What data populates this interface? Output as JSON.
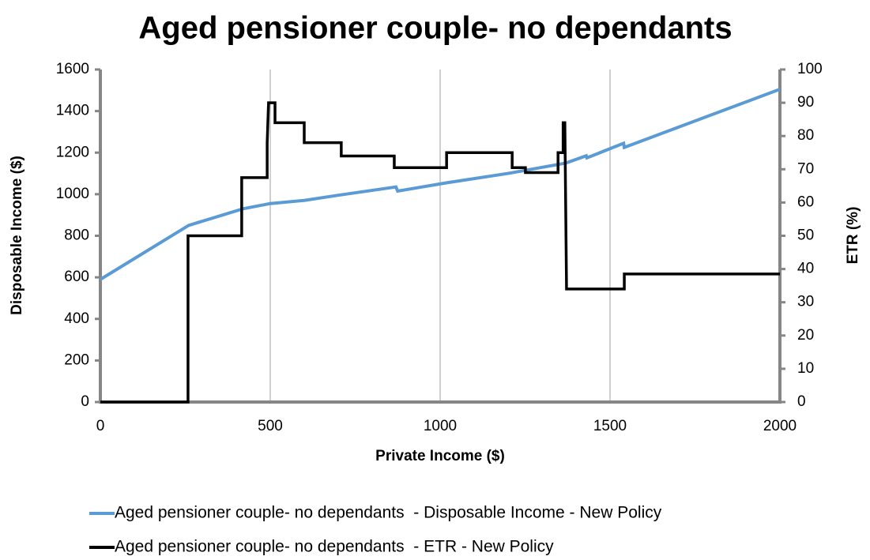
{
  "chart_data": {
    "type": "line",
    "title": "Aged pensioner couple- no dependants",
    "xlabel": "Private Income ($)",
    "ylabel": "Disposable Income ($)",
    "y2label": "ETR (%)",
    "xlim": [
      0,
      2000
    ],
    "xticks": [
      0,
      500,
      1000,
      1500,
      2000
    ],
    "ylim": [
      0,
      1600
    ],
    "yticks": [
      0,
      200,
      400,
      600,
      800,
      1000,
      1200,
      1400,
      1600
    ],
    "y2lim": [
      0,
      100
    ],
    "y2ticks": [
      0,
      10,
      20,
      30,
      40,
      50,
      60,
      70,
      80,
      90,
      100
    ],
    "grid": "x",
    "legend": "bottom",
    "series": [
      {
        "name": "Aged pensioner couple- no dependants  - Disposable Income - New Policy",
        "color": "#5b9bd5",
        "axis": "y",
        "x": [
          0,
          260,
          420,
          500,
          600,
          700,
          870,
          875,
          1020,
          1200,
          1370,
          1430,
          1432,
          1540,
          1542,
          2000
        ],
        "values": [
          590,
          850,
          930,
          955,
          970,
          995,
          1035,
          1015,
          1055,
          1100,
          1150,
          1185,
          1175,
          1245,
          1225,
          1505
        ]
      },
      {
        "name": "Aged pensioner couple- no dependants  - ETR - New Policy",
        "color": "#000000",
        "axis": "y2",
        "x": [
          0,
          258,
          258,
          416,
          416,
          491,
          491,
          495,
          514,
          514,
          600,
          600,
          709,
          709,
          865,
          865,
          1019,
          1019,
          1212,
          1212,
          1251,
          1251,
          1347,
          1347,
          1362,
          1362,
          1367,
          1372,
          1542,
          1542,
          2000
        ],
        "values": [
          0,
          0,
          50,
          50,
          67.5,
          67.5,
          78,
          90,
          90,
          84,
          84,
          78,
          78,
          74,
          74,
          70.5,
          70.5,
          75,
          75,
          70.5,
          70.5,
          69,
          69,
          75,
          75,
          84,
          84,
          34,
          34,
          38.5,
          38.5
        ]
      }
    ]
  }
}
